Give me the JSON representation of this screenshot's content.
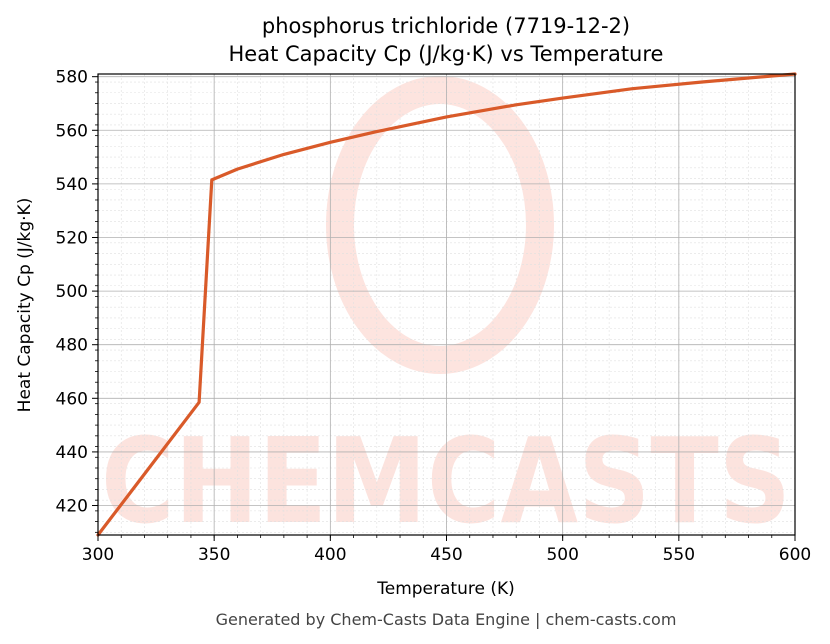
{
  "chart_data": {
    "type": "line",
    "title": "phosphorus trichloride (7719-12-2)",
    "subtitle": "Heat Capacity Cp (J/kg·K) vs Temperature",
    "xlabel": "Temperature (K)",
    "ylabel": "Heat Capacity Cp (J/kg·K)",
    "xlim": [
      300,
      600
    ],
    "ylim": [
      409,
      581
    ],
    "xticks": [
      300,
      350,
      400,
      450,
      500,
      550,
      600
    ],
    "yticks": [
      420,
      440,
      460,
      480,
      500,
      520,
      540,
      560,
      580
    ],
    "grid": true,
    "series": [
      {
        "color": "#d95a29",
        "x": [
          300,
          343.5,
          349,
          360,
          380,
          400,
          420,
          450,
          480,
          500,
          530,
          560,
          600
        ],
        "y": [
          409,
          458.5,
          541.5,
          545.5,
          551,
          555.5,
          559.5,
          565,
          569.5,
          572,
          575.5,
          578,
          581
        ]
      }
    ]
  },
  "watermark": "CHEMCASTS",
  "footer": "Generated by Chem-Casts Data Engine | chem-casts.com"
}
